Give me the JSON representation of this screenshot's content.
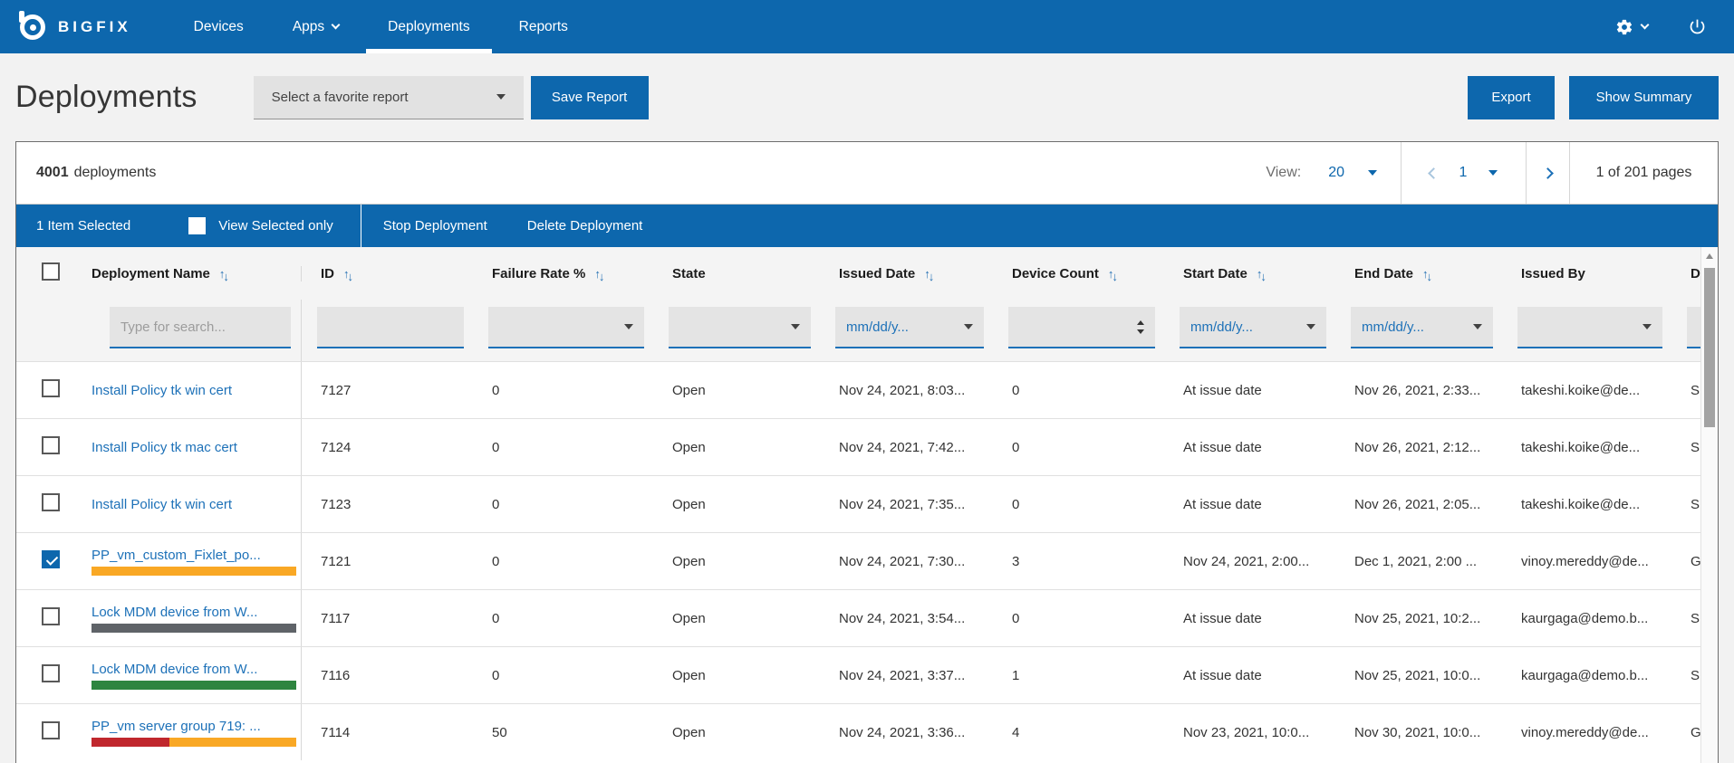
{
  "brand": {
    "name": "BIGFIX"
  },
  "nav": {
    "devices": "Devices",
    "apps": "Apps",
    "deployments": "Deployments",
    "reports": "Reports"
  },
  "page": {
    "title": "Deployments",
    "favorite_placeholder": "Select a favorite report",
    "save_report": "Save Report",
    "export": "Export",
    "show_summary": "Show Summary"
  },
  "toolbar": {
    "count": "4001",
    "count_suffix": "deployments",
    "view_label": "View:",
    "view_value": "20",
    "page_value": "1",
    "page_info": "1 of 201 pages"
  },
  "selection": {
    "selected_text": "1 Item Selected",
    "view_selected_label": "View Selected only",
    "stop_label": "Stop Deployment",
    "delete_label": "Delete Deployment"
  },
  "table": {
    "columns": {
      "name": "Deployment Name",
      "id": "ID",
      "failure": "Failure Rate %",
      "state": "State",
      "issued": "Issued Date",
      "device": "Device Count",
      "start": "Start Date",
      "end": "End Date",
      "by": "Issued By",
      "dep": "Dep"
    },
    "filters": {
      "search_placeholder": "Type for search...",
      "date_placeholder": "mm/dd/y..."
    },
    "rows": [
      {
        "selected": false,
        "name": "Install Policy tk win cert",
        "id": "7127",
        "failure_rate": "0",
        "state": "Open",
        "issued_date": "Nov 24, 2021, 8:03...",
        "device_count": "0",
        "start_date": "At issue date",
        "end_date": "Nov 26, 2021, 2:33...",
        "issued_by": "takeshi.koike@de...",
        "deployment_type": "Single",
        "bars": []
      },
      {
        "selected": false,
        "name": "Install Policy tk mac cert",
        "id": "7124",
        "failure_rate": "0",
        "state": "Open",
        "issued_date": "Nov 24, 2021, 7:42...",
        "device_count": "0",
        "start_date": "At issue date",
        "end_date": "Nov 26, 2021, 2:12...",
        "issued_by": "takeshi.koike@de...",
        "deployment_type": "Single",
        "bars": []
      },
      {
        "selected": false,
        "name": "Install Policy tk win cert",
        "id": "7123",
        "failure_rate": "0",
        "state": "Open",
        "issued_date": "Nov 24, 2021, 7:35...",
        "device_count": "0",
        "start_date": "At issue date",
        "end_date": "Nov 26, 2021, 2:05...",
        "issued_by": "takeshi.koike@de...",
        "deployment_type": "Single",
        "bars": []
      },
      {
        "selected": true,
        "name": "PP_vm_custom_Fixlet_po...",
        "id": "7121",
        "failure_rate": "0",
        "state": "Open",
        "issued_date": "Nov 24, 2021, 7:30...",
        "device_count": "3",
        "start_date": "Nov 24, 2021, 2:00...",
        "end_date": "Dec 1, 2021, 2:00 ...",
        "issued_by": "vinoy.mereddy@de...",
        "deployment_type": "Group",
        "bars": [
          {
            "color": "#f9a825",
            "width": "100%"
          }
        ]
      },
      {
        "selected": false,
        "name": "Lock MDM device from W...",
        "id": "7117",
        "failure_rate": "0",
        "state": "Open",
        "issued_date": "Nov 24, 2021, 3:54...",
        "device_count": "0",
        "start_date": "At issue date",
        "end_date": "Nov 25, 2021, 10:2...",
        "issued_by": "kaurgaga@demo.b...",
        "deployment_type": "Single",
        "bars": [
          {
            "color": "#5f6368",
            "width": "100%"
          }
        ]
      },
      {
        "selected": false,
        "name": "Lock MDM device from W...",
        "id": "7116",
        "failure_rate": "0",
        "state": "Open",
        "issued_date": "Nov 24, 2021, 3:37...",
        "device_count": "1",
        "start_date": "At issue date",
        "end_date": "Nov 25, 2021, 10:0...",
        "issued_by": "kaurgaga@demo.b...",
        "deployment_type": "Single",
        "bars": [
          {
            "color": "#2e8540",
            "width": "100%"
          }
        ]
      },
      {
        "selected": false,
        "name": "PP_vm server group 719: ...",
        "id": "7114",
        "failure_rate": "50",
        "state": "Open",
        "issued_date": "Nov 24, 2021, 3:36...",
        "device_count": "4",
        "start_date": "Nov 23, 2021, 10:0...",
        "end_date": "Nov 30, 2021, 10:0...",
        "issued_by": "vinoy.mereddy@de...",
        "deployment_type": "Group",
        "bars": [
          {
            "color": "#c0272d",
            "width": "38%"
          },
          {
            "color": "#f9a825",
            "width": "62%"
          }
        ]
      }
    ]
  },
  "colors": {
    "accent": "#0d67ad",
    "link": "#1d71b8",
    "bar_amber": "#f9a825",
    "bar_gray": "#5f6368",
    "bar_green": "#2e8540",
    "bar_red": "#c0272d"
  }
}
